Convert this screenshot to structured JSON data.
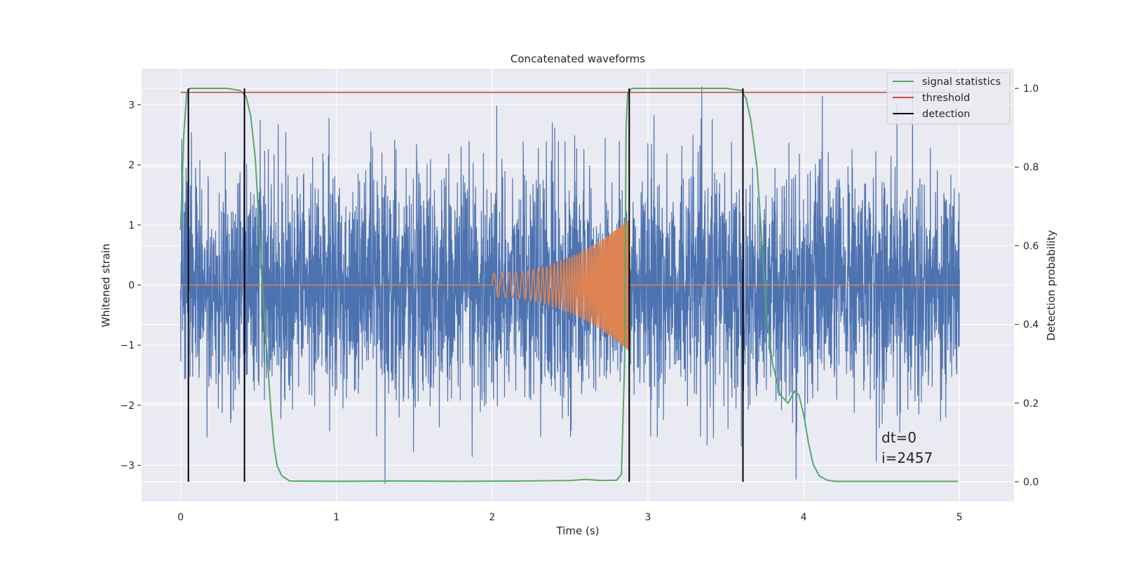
{
  "chart_data": {
    "type": "line",
    "title": "Concatenated waveforms",
    "xlabel": "Time (s)",
    "ylabel_left": "Whitened strain",
    "ylabel_right": "Detection probability",
    "xlim": [
      -0.25,
      5.35
    ],
    "ylim_left": [
      -3.6,
      3.6
    ],
    "ylim_right": [
      -0.05,
      1.05
    ],
    "xticks": [
      0,
      1,
      2,
      3,
      4,
      5
    ],
    "xtick_labels": [
      "0",
      "1",
      "2",
      "3",
      "4",
      "5"
    ],
    "yticks_left": [
      -3,
      -2,
      -1,
      0,
      1,
      2,
      3
    ],
    "ytick_labels_left": [
      "−3",
      "−2",
      "−1",
      "0",
      "1",
      "2",
      "3"
    ],
    "yticks_right": [
      0.0,
      0.2,
      0.4,
      0.6,
      0.8,
      1.0
    ],
    "ytick_labels_right": [
      "0.0",
      "0.2",
      "0.4",
      "0.6",
      "0.8",
      "1.0"
    ],
    "grid": true,
    "legend_position": "top-right",
    "legend": [
      {
        "label": "signal statistics",
        "color": "#55a868"
      },
      {
        "label": "threshold",
        "color": "#c44e52"
      },
      {
        "label": "detection",
        "color": "#000000"
      }
    ],
    "series": [
      {
        "color": "#4c72b0",
        "axis": "left",
        "kind": "noise",
        "x_range": [
          0,
          5
        ],
        "amplitude_range": [
          -3.3,
          3.3
        ]
      },
      {
        "color": "#dd8452",
        "axis": "left",
        "kind": "chirp",
        "x_range": [
          2.0,
          2.88
        ],
        "amplitude_start": 0.2,
        "amplitude_end": 1.1,
        "frequency_start_hz": 20,
        "frequency_end_hz": 140
      },
      {
        "name": "signal statistics",
        "color": "#55a868",
        "axis": "right",
        "x": [
          0.0,
          0.02,
          0.04,
          0.06,
          0.08,
          0.1,
          0.2,
          0.3,
          0.38,
          0.42,
          0.45,
          0.48,
          0.5,
          0.52,
          0.55,
          0.58,
          0.6,
          0.62,
          0.65,
          0.7,
          1.0,
          1.4,
          1.8,
          2.2,
          2.5,
          2.6,
          2.7,
          2.8,
          2.83,
          2.85,
          2.86,
          2.87,
          2.9,
          3.0,
          3.5,
          3.6,
          3.63,
          3.66,
          3.7,
          3.73,
          3.76,
          3.8,
          3.85,
          3.9,
          3.94,
          3.97,
          4.0,
          4.03,
          4.06,
          4.1,
          4.15,
          4.2,
          4.5,
          4.99
        ],
        "y": [
          0.64,
          0.88,
          0.99,
          1.0,
          1.0,
          1.0,
          1.0,
          1.0,
          0.995,
          0.98,
          0.93,
          0.82,
          0.68,
          0.53,
          0.35,
          0.18,
          0.09,
          0.04,
          0.015,
          0.002,
          0.001,
          0.002,
          0.001,
          0.002,
          0.003,
          0.006,
          0.003,
          0.004,
          0.02,
          0.3,
          0.9,
          0.99,
          1.0,
          1.0,
          1.0,
          0.995,
          0.975,
          0.92,
          0.8,
          0.62,
          0.43,
          0.3,
          0.22,
          0.2,
          0.23,
          0.22,
          0.17,
          0.1,
          0.045,
          0.015,
          0.004,
          0.001,
          0.001,
          0.001
        ]
      },
      {
        "name": "threshold",
        "color": "#c44e52",
        "axis": "right",
        "x": [
          0,
          4.99
        ],
        "y": [
          0.99,
          0.99
        ]
      },
      {
        "name": "detection",
        "color": "#000000",
        "axis": "right",
        "vlines_x": [
          0.05,
          0.41,
          2.88,
          3.61
        ],
        "y": [
          0.0,
          1.0
        ]
      }
    ],
    "annotations": [
      "dt=0",
      "i=2457"
    ]
  }
}
